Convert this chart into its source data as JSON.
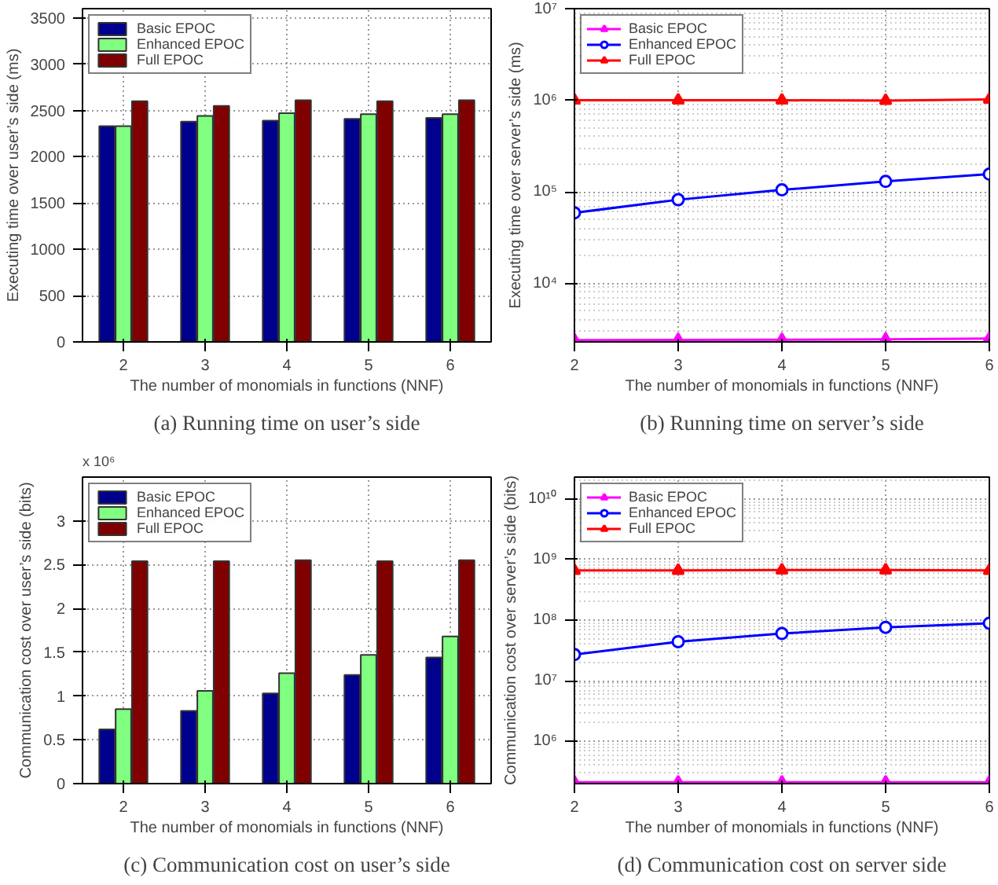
{
  "chart_data": [
    {
      "type": "bar",
      "title": "(a) Running time on user’s side",
      "xlabel": "The number of monomials in functions (NNF)",
      "ylabel": "Executing time over user’s side (ms)",
      "categories": [
        "2",
        "3",
        "4",
        "5",
        "6"
      ],
      "ylim": [
        0,
        3600
      ],
      "yticks": [
        0,
        500,
        1000,
        1500,
        2000,
        2500,
        3000,
        3500
      ],
      "grid": true,
      "legend": "top left",
      "series": [
        {
          "name": "Basic EPOC",
          "color": "#00008f",
          "values": [
            2330,
            2380,
            2390,
            2410,
            2420
          ]
        },
        {
          "name": "Enhanced EPOC",
          "color": "#80ff80",
          "values": [
            2330,
            2440,
            2470,
            2460,
            2460
          ]
        },
        {
          "name": "Full EPOC",
          "color": "#800000",
          "values": [
            2600,
            2550,
            2610,
            2600,
            2610
          ]
        }
      ]
    },
    {
      "type": "line",
      "title": "(b) Running time on server’s side",
      "xlabel": "The number of monomials in functions (NNF)",
      "ylabel": "Executing time over server’s side (ms)",
      "x": [
        2,
        3,
        4,
        5,
        6
      ],
      "xlim": [
        2,
        6
      ],
      "xticks": [
        2,
        3,
        4,
        5,
        6
      ],
      "ylim": [
        2300,
        10000000
      ],
      "yticks": [
        {
          "value": 10000,
          "label": "10⁴"
        },
        {
          "value": 100000,
          "label": "10⁵"
        },
        {
          "value": 1000000,
          "label": "10⁶"
        },
        {
          "value": 10000000,
          "label": "10⁷"
        }
      ],
      "log": "y",
      "grid": true,
      "legend": "top left",
      "series": [
        {
          "name": "Basic EPOC",
          "color": "#ff00ff",
          "marker": "triangle",
          "values": [
            2400,
            2420,
            2430,
            2450,
            2500
          ]
        },
        {
          "name": "Enhanced EPOC",
          "color": "#0000ff",
          "marker": "circle",
          "values": [
            59000,
            82000,
            105000,
            130000,
            156000
          ]
        },
        {
          "name": "Full EPOC",
          "color": "#ff0000",
          "marker": "triangle",
          "values": [
            1000000,
            1000000,
            1000000,
            990000,
            1020000
          ]
        }
      ]
    },
    {
      "type": "bar",
      "title": "(c) Communication cost on user’s side",
      "xlabel": "The number of monomials in functions (NNF)",
      "ylabel": "Communication cost over user’s side (bits)",
      "annotations": [
        "x 10⁶"
      ],
      "categories": [
        "2",
        "3",
        "4",
        "5",
        "6"
      ],
      "ylim": [
        0,
        3.5
      ],
      "yticks": [
        0,
        0.5,
        1,
        1.5,
        2,
        2.5,
        3
      ],
      "grid": true,
      "legend": "top left",
      "series": [
        {
          "name": "Basic EPOC",
          "color": "#00008f",
          "values": [
            0.62,
            0.83,
            1.03,
            1.24,
            1.44
          ]
        },
        {
          "name": "Enhanced EPOC",
          "color": "#80ff80",
          "values": [
            0.85,
            1.06,
            1.26,
            1.47,
            1.68
          ]
        },
        {
          "name": "Full EPOC",
          "color": "#800000",
          "values": [
            2.54,
            2.54,
            2.55,
            2.54,
            2.55
          ]
        }
      ]
    },
    {
      "type": "line",
      "title": "(d) Communication cost on server side",
      "xlabel": "The number of monomials in functions (NNF)",
      "ylabel": "Communication cost over server’s side (bits)",
      "x": [
        2,
        3,
        4,
        5,
        6
      ],
      "xlim": [
        2,
        6
      ],
      "xticks": [
        2,
        3,
        4,
        5,
        6
      ],
      "ylim": [
        200000,
        23000000000
      ],
      "yticks": [
        {
          "value": 1000000,
          "label": "10⁶"
        },
        {
          "value": 10000000,
          "label": "10⁷"
        },
        {
          "value": 100000000,
          "label": "10⁸"
        },
        {
          "value": 1000000000,
          "label": "10⁹"
        },
        {
          "value": 10000000000,
          "label": "10¹⁰"
        }
      ],
      "log": "y",
      "grid": true,
      "legend": "top left",
      "series": [
        {
          "name": "Basic EPOC",
          "color": "#ff00ff",
          "marker": "triangle",
          "values": [
            210000,
            210000,
            210000,
            210000,
            210000
          ]
        },
        {
          "name": "Enhanced EPOC",
          "color": "#0000ff",
          "marker": "circle",
          "values": [
            27000000,
            44000000,
            60000000,
            76000000,
            89000000
          ]
        },
        {
          "name": "Full EPOC",
          "color": "#ff0000",
          "marker": "triangle",
          "values": [
            660000000,
            660000000,
            670000000,
            670000000,
            660000000
          ]
        }
      ]
    }
  ]
}
